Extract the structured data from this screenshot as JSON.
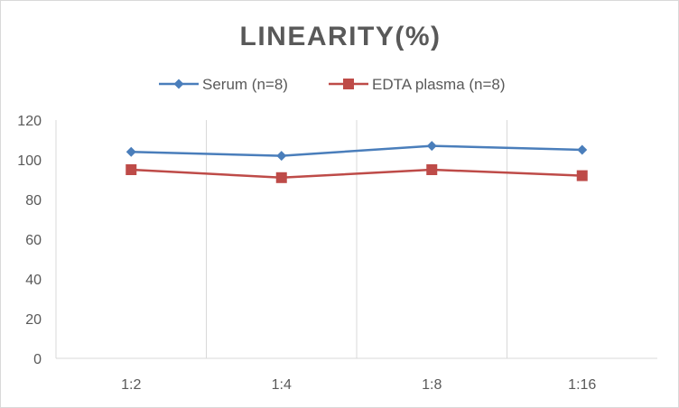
{
  "chart_data": {
    "type": "line",
    "title": "LINEARITY(%)",
    "categories": [
      "1:2",
      "1:4",
      "1:8",
      "1:16"
    ],
    "series": [
      {
        "name": "Serum (n=8)",
        "values": [
          104,
          102,
          107,
          105
        ],
        "color": "#4a7ebb",
        "marker": "diamond"
      },
      {
        "name": "EDTA plasma (n=8)",
        "values": [
          95,
          91,
          95,
          92
        ],
        "color": "#be4b48",
        "marker": "square"
      }
    ],
    "ylim": [
      0,
      120
    ],
    "yticks": [
      0,
      20,
      40,
      60,
      80,
      100,
      120
    ],
    "grid": "vertical",
    "legend": "top"
  }
}
